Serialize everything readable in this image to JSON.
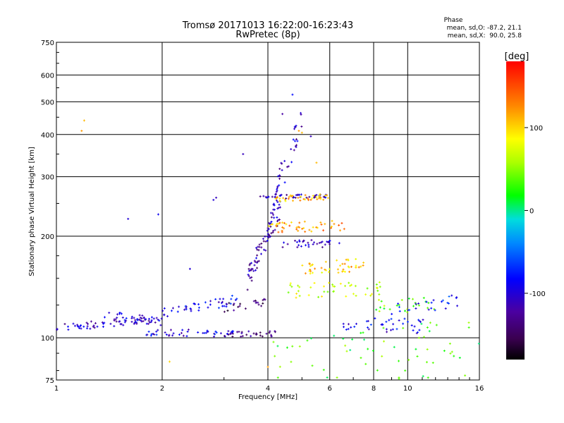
{
  "chart_data": {
    "type": "scatter",
    "title": "Tromsø 20171013 16:22:00-16:23:43",
    "subtitle": "RwPretec (8p)",
    "xlabel": "Frequency [MHz]",
    "ylabel": "Stationary phase Virtual Height [km]",
    "x_scale": "log",
    "y_scale": "log",
    "xlim": [
      1,
      16
    ],
    "ylim": [
      75,
      750
    ],
    "grid": true,
    "x_ticks": [
      1,
      2,
      4,
      6,
      8,
      10,
      16
    ],
    "x_tick_labels": [
      "1",
      "2",
      "4",
      "6",
      "8",
      "10",
      "16"
    ],
    "y_ticks": [
      75,
      100,
      200,
      300,
      400,
      500,
      600,
      750
    ],
    "y_tick_labels": [
      "75",
      "100",
      "200",
      "300",
      "400",
      "500",
      "600",
      "750"
    ],
    "annotation": {
      "title": "Phase",
      "line1": "mean, sd,O: -87.2, 21.1",
      "line2": "mean, sd,X:  90.0, 25.8"
    },
    "colorbar": {
      "label": "[deg]",
      "range": [
        -180,
        180
      ],
      "ticks": [
        100,
        0,
        -100
      ],
      "tick_labels": [
        "100",
        "0",
        "-100"
      ]
    },
    "series": [
      {
        "traces": [
          {
            "f0": 1.0,
            "f1": 1.9,
            "h0": 107,
            "h1": 113,
            "n": 60,
            "phase": -110,
            "jit": 0.025
          },
          {
            "f0": 1.35,
            "f1": 2.0,
            "h0": 117,
            "h1": 112,
            "n": 35,
            "phase": -100,
            "jit": 0.03
          },
          {
            "f0": 1.8,
            "f1": 3.2,
            "h0": 104,
            "h1": 103,
            "n": 45,
            "phase": -95,
            "jit": 0.025
          },
          {
            "f0": 2.0,
            "f1": 3.3,
            "h0": 118,
            "h1": 130,
            "n": 45,
            "phase": -90,
            "jit": 0.035
          },
          {
            "f0": 3.0,
            "f1": 4.2,
            "h0": 102,
            "h1": 103,
            "n": 30,
            "phase": -140,
            "jit": 0.02
          },
          {
            "f0": 3.0,
            "f1": 4.0,
            "h0": 123,
            "h1": 128,
            "n": 20,
            "phase": -150,
            "jit": 0.03
          },
          {
            "f0": 3.5,
            "f1": 4.4,
            "h0": 150,
            "h1": 250,
            "n": 70,
            "phase": -115,
            "jit": 0.08
          },
          {
            "f0": 4.0,
            "f1": 4.4,
            "h0": 200,
            "h1": 330,
            "n": 30,
            "phase": -110,
            "jit": 0.06
          },
          {
            "f0": 3.8,
            "f1": 6.0,
            "h0": 262,
            "h1": 262,
            "n": 40,
            "phase": -110,
            "jit": 0.015
          },
          {
            "f0": 4.2,
            "f1": 6.0,
            "h0": 258,
            "h1": 262,
            "n": 40,
            "phase": 110,
            "jit": 0.02
          },
          {
            "f0": 4.0,
            "f1": 6.6,
            "h0": 212,
            "h1": 215,
            "n": 45,
            "phase": 120,
            "jit": 0.035
          },
          {
            "f0": 4.4,
            "f1": 6.4,
            "h0": 190,
            "h1": 190,
            "n": 35,
            "phase": -110,
            "jit": 0.025
          },
          {
            "f0": 5.0,
            "f1": 7.5,
            "h0": 160,
            "h1": 165,
            "n": 45,
            "phase": 105,
            "jit": 0.045
          },
          {
            "f0": 4.5,
            "f1": 8.5,
            "h0": 138,
            "h1": 140,
            "n": 45,
            "phase": 70,
            "jit": 0.05
          },
          {
            "f0": 6.5,
            "f1": 11.5,
            "h0": 110,
            "h1": 108,
            "n": 40,
            "phase": -90,
            "jit": 0.05
          },
          {
            "f0": 8.0,
            "f1": 12.0,
            "h0": 125,
            "h1": 125,
            "n": 25,
            "phase": 40,
            "jit": 0.05
          },
          {
            "f0": 9.0,
            "f1": 14.5,
            "h0": 122,
            "h1": 130,
            "n": 25,
            "phase": -80,
            "jit": 0.05
          },
          {
            "f0": 4.0,
            "f1": 16.0,
            "h0": 80,
            "h1": 95,
            "n": 75,
            "phase": 30,
            "jit": 0.2
          },
          {
            "f0": 4.2,
            "f1": 5.0,
            "h0": 250,
            "h1": 460,
            "n": 25,
            "phase": -110,
            "jit": 0.1
          }
        ]
      }
    ],
    "isolated_points": [
      [
        1.2,
        440,
        110
      ],
      [
        1.18,
        410,
        120
      ],
      [
        1.6,
        225,
        -100
      ],
      [
        1.95,
        232,
        -90
      ],
      [
        2.1,
        85,
        100
      ],
      [
        2.4,
        160,
        -100
      ],
      [
        2.8,
        256,
        -100
      ],
      [
        2.85,
        260,
        -110
      ],
      [
        3.4,
        350,
        -110
      ],
      [
        4.7,
        525,
        -80
      ],
      [
        4.4,
        460,
        -120
      ],
      [
        5.3,
        395,
        -110
      ],
      [
        4.9,
        410,
        120
      ],
      [
        5.0,
        405,
        110
      ],
      [
        5.5,
        330,
        110
      ],
      [
        4.0,
        82,
        120
      ]
    ]
  }
}
